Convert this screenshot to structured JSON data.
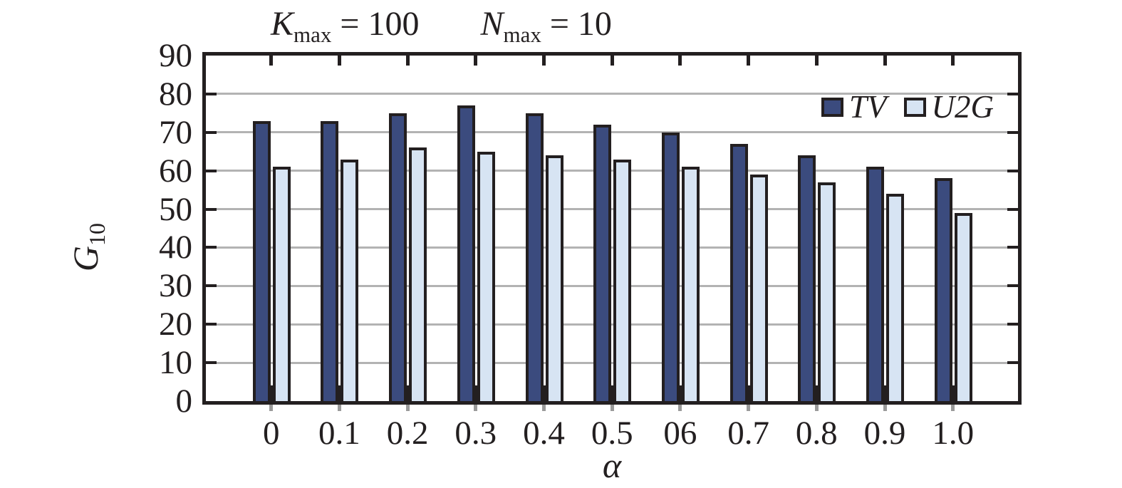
{
  "title": {
    "k_var": "K",
    "k_sub": "max",
    "k_eq": " = 100",
    "n_var": "N",
    "n_sub": "max",
    "n_eq": " = 10"
  },
  "y_axis": {
    "label_var": "G",
    "label_sub": "10",
    "ticks": [
      "90",
      "80",
      "70",
      "60",
      "50",
      "40",
      "30",
      "20",
      "10",
      "0"
    ]
  },
  "x_axis": {
    "label": "α",
    "ticks": [
      "0",
      "0.1",
      "0.2",
      "0.3",
      "0.4",
      "0.5",
      "06",
      "0.7",
      "0.8",
      "0.9",
      "1.0"
    ]
  },
  "legend": {
    "items": [
      {
        "label": "TV",
        "color": "#3b4b7e"
      },
      {
        "label": "U2G",
        "color": "#d7e4f3"
      }
    ]
  },
  "colors": {
    "ink": "#231f20",
    "gridline": "#b3b3b3",
    "tv_fill": "#3b4b7e",
    "u2g_fill": "#d7e4f3",
    "background": "#ffffff"
  },
  "chart_data": {
    "type": "bar",
    "categories": [
      "0",
      "0.1",
      "0.2",
      "0.3",
      "0.4",
      "0.5",
      "06",
      "0.7",
      "0.8",
      "0.9",
      "1.0"
    ],
    "series": [
      {
        "name": "TV",
        "color": "#3b4b7e",
        "values": [
          73,
          73,
          75,
          77,
          75,
          72,
          70,
          67,
          64,
          61,
          58
        ]
      },
      {
        "name": "U2G",
        "color": "#d7e4f3",
        "values": [
          61,
          63,
          66,
          65,
          64,
          63,
          61,
          59,
          57,
          54,
          49
        ]
      }
    ],
    "title": "K_max = 100   N_max = 10",
    "xlabel": "α",
    "ylabel": "G_10",
    "ylim": [
      0,
      90
    ],
    "ytick_step": 10,
    "grid": true,
    "legend_position": "upper-right-inside"
  }
}
